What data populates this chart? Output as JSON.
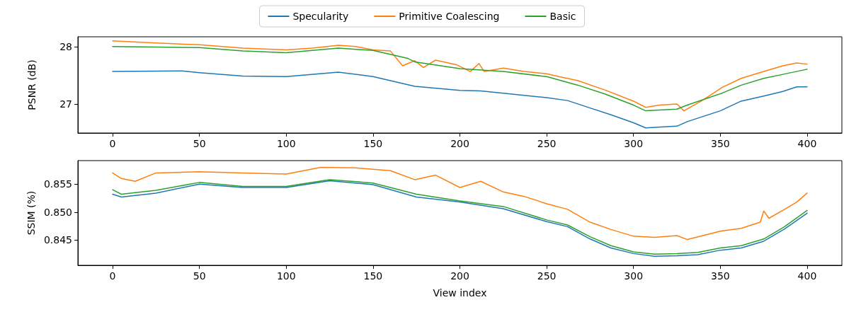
{
  "chart_data": [
    {
      "type": "line",
      "ylabel": "PSNR (dB)",
      "xlim": [
        -20,
        420
      ],
      "xticks": [
        0,
        50,
        100,
        150,
        200,
        250,
        300,
        350,
        400
      ],
      "ylim": [
        26.49,
        28.18
      ],
      "yticks": [
        27,
        28
      ],
      "grid": false,
      "legend": "top",
      "marker": "none",
      "line_style": "solid",
      "series": [
        {
          "name": "Specularity",
          "color": "#1f77b4",
          "x": [
            0,
            40,
            50,
            75,
            100,
            130,
            150,
            160,
            174,
            200,
            212,
            225,
            250,
            262,
            275,
            287,
            300,
            307,
            325,
            331,
            350,
            362,
            375,
            386,
            394,
            400
          ],
          "values": [
            27.57,
            27.58,
            27.55,
            27.49,
            27.48,
            27.56,
            27.48,
            27.41,
            27.31,
            27.24,
            27.23,
            27.19,
            27.11,
            27.06,
            26.93,
            26.81,
            26.67,
            26.58,
            26.61,
            26.69,
            26.88,
            27.05,
            27.14,
            27.22,
            27.3,
            27.3
          ]
        },
        {
          "name": "Primitive Coalescing",
          "color": "#ff7f0e",
          "x": [
            0,
            25,
            50,
            75,
            100,
            115,
            130,
            140,
            150,
            160,
            167,
            174,
            179,
            186,
            198,
            206,
            211,
            214,
            225,
            237,
            250,
            257,
            268,
            284,
            300,
            307,
            315,
            325,
            329,
            339,
            351,
            362,
            375,
            386,
            394,
            400
          ],
          "values": [
            28.11,
            28.07,
            28.04,
            27.98,
            27.95,
            27.98,
            28.03,
            28.01,
            27.95,
            27.93,
            27.67,
            27.76,
            27.64,
            27.77,
            27.69,
            27.57,
            27.71,
            27.57,
            27.63,
            27.57,
            27.53,
            27.48,
            27.41,
            27.24,
            27.05,
            26.94,
            26.98,
            27.0,
            26.88,
            27.05,
            27.29,
            27.45,
            27.57,
            27.67,
            27.72,
            27.7
          ]
        },
        {
          "name": "Basic",
          "color": "#2ca02c",
          "x": [
            0,
            25,
            50,
            75,
            100,
            130,
            150,
            170,
            174,
            200,
            225,
            250,
            268,
            284,
            300,
            307,
            325,
            331,
            351,
            362,
            375,
            386,
            400
          ],
          "values": [
            28.01,
            28.0,
            27.99,
            27.93,
            27.9,
            27.98,
            27.94,
            27.8,
            27.74,
            27.62,
            27.57,
            27.48,
            27.33,
            27.17,
            26.98,
            26.88,
            26.91,
            26.98,
            27.19,
            27.33,
            27.45,
            27.52,
            27.61
          ]
        }
      ]
    },
    {
      "type": "line",
      "xlabel": "View index",
      "ylabel": "SSIM (%)",
      "xlim": [
        -20,
        420
      ],
      "xticks": [
        0,
        50,
        100,
        150,
        200,
        250,
        300,
        350,
        400
      ],
      "ylim": [
        0.8405,
        0.8592
      ],
      "yticks": [
        0.845,
        {
          "value": 0.85,
          "label": "0.850"
        },
        0.855
      ],
      "grid": false,
      "marker": "none",
      "line_style": "solid",
      "series": [
        {
          "color": "#1f77b4",
          "x": [
            0,
            5,
            25,
            50,
            75,
            100,
            125,
            150,
            175,
            200,
            225,
            250,
            262,
            275,
            287,
            300,
            312,
            325,
            337,
            350,
            362,
            375,
            387,
            400
          ],
          "values": [
            0.8532,
            0.8527,
            0.8534,
            0.855,
            0.8544,
            0.8544,
            0.8556,
            0.8549,
            0.8527,
            0.8518,
            0.8506,
            0.8483,
            0.8474,
            0.8452,
            0.8436,
            0.8426,
            0.8421,
            0.8422,
            0.8424,
            0.8432,
            0.8436,
            0.8448,
            0.847,
            0.8498
          ]
        },
        {
          "color": "#ff7f0e",
          "x": [
            0,
            5,
            13,
            25,
            50,
            75,
            100,
            120,
            140,
            160,
            174,
            186,
            200,
            212,
            225,
            237,
            250,
            262,
            275,
            287,
            300,
            312,
            325,
            331,
            340,
            350,
            362,
            373,
            375,
            378,
            387,
            394,
            400
          ],
          "values": [
            0.857,
            0.856,
            0.8555,
            0.857,
            0.8572,
            0.857,
            0.8568,
            0.858,
            0.8579,
            0.8574,
            0.8558,
            0.8566,
            0.8544,
            0.8555,
            0.8536,
            0.8528,
            0.8515,
            0.8505,
            0.8482,
            0.8469,
            0.8457,
            0.8455,
            0.8458,
            0.8451,
            0.8458,
            0.8466,
            0.8471,
            0.8482,
            0.8502,
            0.8489,
            0.8505,
            0.8518,
            0.8534
          ]
        },
        {
          "color": "#2ca02c",
          "x": [
            0,
            5,
            25,
            50,
            75,
            100,
            125,
            150,
            175,
            200,
            225,
            250,
            262,
            275,
            287,
            300,
            312,
            325,
            337,
            350,
            362,
            375,
            387,
            400
          ],
          "values": [
            0.854,
            0.8532,
            0.8539,
            0.8553,
            0.8546,
            0.8546,
            0.8558,
            0.8552,
            0.8532,
            0.852,
            0.851,
            0.8486,
            0.8477,
            0.8456,
            0.844,
            0.8429,
            0.8425,
            0.8426,
            0.8428,
            0.8436,
            0.844,
            0.8452,
            0.8474,
            0.8503
          ]
        }
      ]
    }
  ]
}
